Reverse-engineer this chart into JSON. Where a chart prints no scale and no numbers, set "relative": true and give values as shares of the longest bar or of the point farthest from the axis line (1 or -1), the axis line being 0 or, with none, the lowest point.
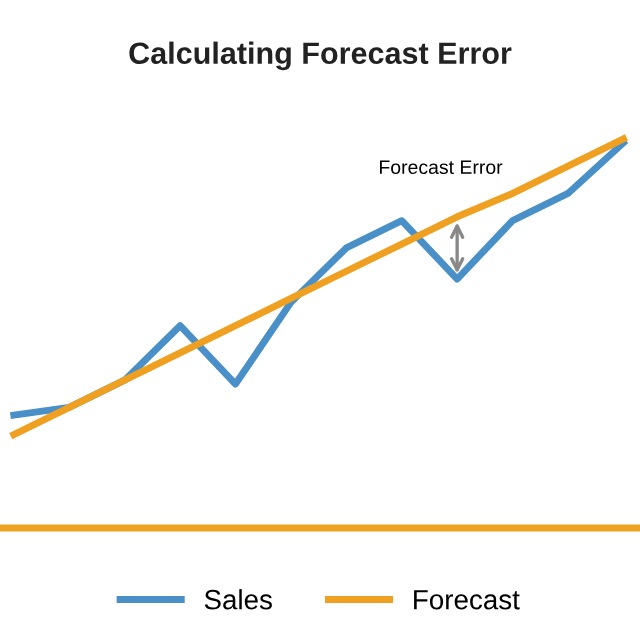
{
  "chart_data": {
    "type": "line",
    "title": "Calculating Forecast Error",
    "relative": true,
    "categories": [
      null,
      null,
      null,
      null,
      null,
      null,
      null,
      null,
      null,
      null,
      null,
      null
    ],
    "series": [
      {
        "name": "Sales",
        "color": "#4a90c8",
        "values": [
          0.29,
          0.31,
          0.38,
          0.52,
          0.37,
          0.58,
          0.72,
          0.79,
          0.64,
          0.79,
          0.86,
          0.99
        ]
      },
      {
        "name": "Forecast",
        "color": "#f0a020",
        "values": [
          0.24,
          0.31,
          0.38,
          0.45,
          0.52,
          0.59,
          0.66,
          0.73,
          0.8,
          0.86,
          0.93,
          1.0
        ]
      }
    ],
    "annotations": [
      "Forecast Error"
    ],
    "legend": "bottom",
    "grid": false,
    "marker": "none",
    "line_style": "solid"
  }
}
